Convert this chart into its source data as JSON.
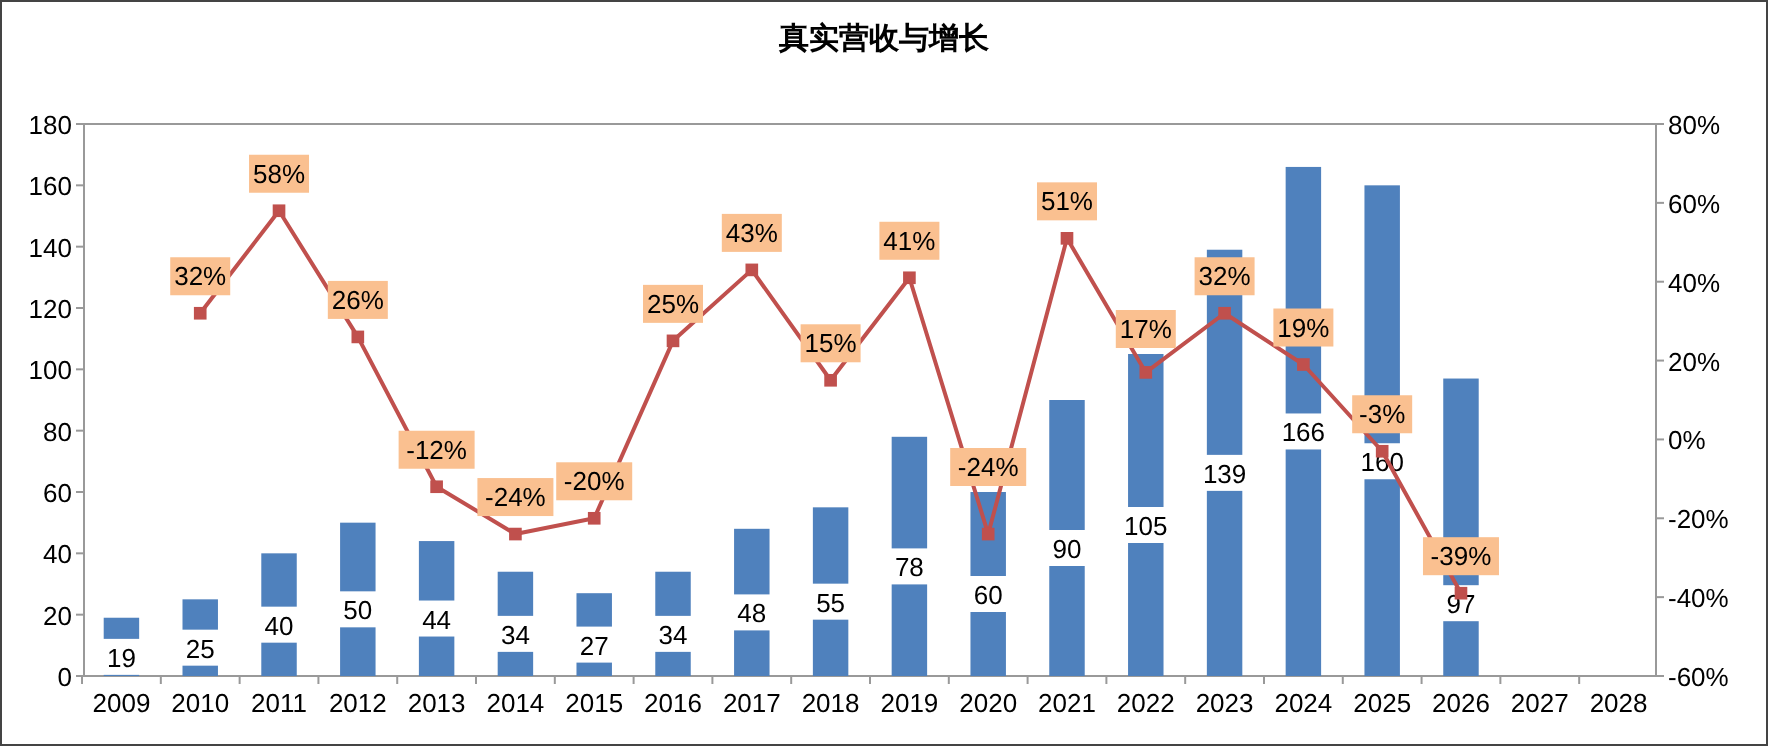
{
  "chart_data": {
    "type": "bar",
    "title": "真实营收与增长",
    "categories": [
      "2009",
      "2010",
      "2011",
      "2012",
      "2013",
      "2014",
      "2015",
      "2016",
      "2017",
      "2018",
      "2019",
      "2020",
      "2021",
      "2022",
      "2023",
      "2024",
      "2025",
      "2026",
      "2027",
      "2028"
    ],
    "series": [
      {
        "color": "#4f81bd",
        "values": [
          19,
          25,
          40,
          50,
          44,
          34,
          27,
          34,
          48,
          55,
          78,
          60,
          90,
          105,
          139,
          166,
          160,
          97,
          null,
          null
        ]
      },
      {
        "type": "line",
        "axis": "y2",
        "color": "#c0504d",
        "marker": "square",
        "line_style": "solid",
        "values": [
          null,
          32,
          58,
          26,
          -12,
          -24,
          -20,
          25,
          43,
          15,
          41,
          -24,
          51,
          17,
          32,
          19,
          -3,
          -39,
          null,
          null
        ],
        "value_labels": [
          null,
          "32%",
          "58%",
          "26%",
          "-12%",
          "-24%",
          "-20%",
          "25%",
          "43%",
          "15%",
          "41%",
          "-24%",
          "51%",
          "17%",
          "32%",
          "19%",
          "-3%",
          "-39%",
          null,
          null
        ]
      }
    ],
    "ylim": [
      0,
      180
    ],
    "yticks": [
      0,
      20,
      40,
      60,
      80,
      100,
      120,
      140,
      160,
      180
    ],
    "y2lim": [
      -60,
      80
    ],
    "y2ticks": [
      {
        "value": -60,
        "label": "-60%"
      },
      {
        "value": -40,
        "label": "-40%"
      },
      {
        "value": -20,
        "label": "-20%"
      },
      {
        "value": 0,
        "label": "0%"
      },
      {
        "value": 20,
        "label": "20%"
      },
      {
        "value": 40,
        "label": "40%"
      },
      {
        "value": 60,
        "label": "60%"
      },
      {
        "value": 80,
        "label": "80%"
      }
    ],
    "data_labels": true,
    "grid": false
  }
}
